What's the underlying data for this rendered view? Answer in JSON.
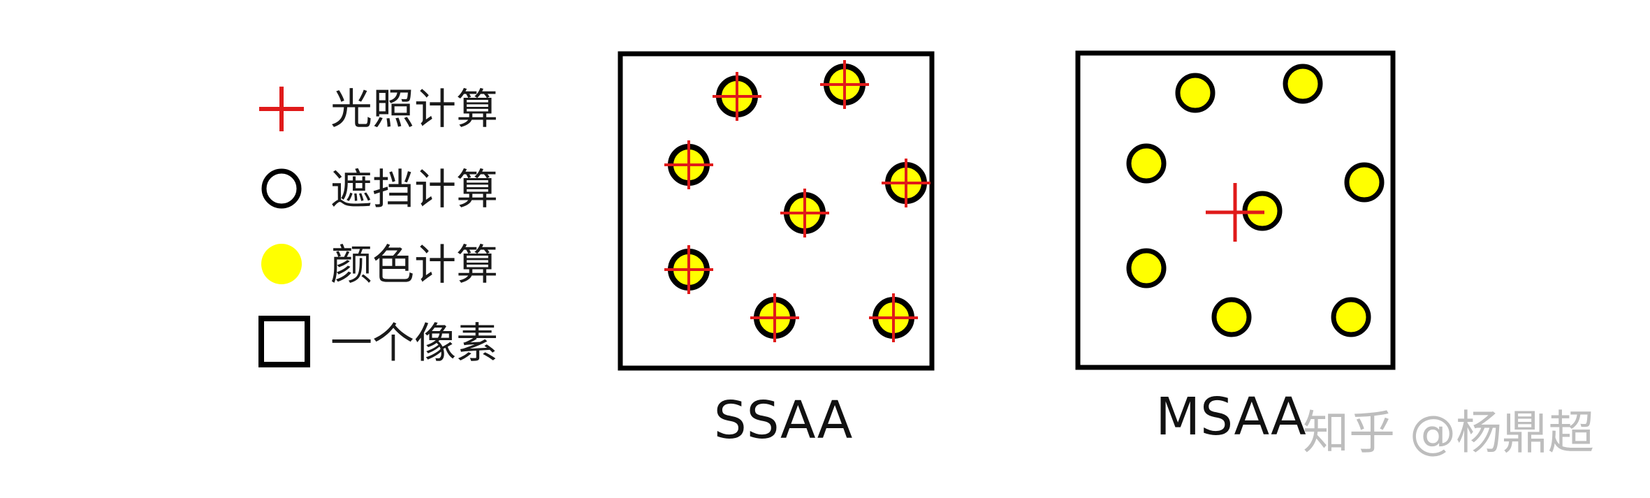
{
  "colors": {
    "lighting": "#e01a1a",
    "occlusion": "#000000",
    "color_sample": "#ffff00",
    "background": "#ffffff",
    "watermark": "#bdbdbd"
  },
  "legend": {
    "items": [
      {
        "icon": "red-cross-icon",
        "label": "光照计算"
      },
      {
        "icon": "black-ring-icon",
        "label": "遮挡计算"
      },
      {
        "icon": "yellow-dot-icon",
        "label": "颜色计算"
      },
      {
        "icon": "black-square-icon",
        "label": "一个像素"
      }
    ]
  },
  "panels": [
    {
      "caption": "SSAA"
    },
    {
      "caption": "MSAA"
    }
  ],
  "watermark": "知乎 @杨鼎超"
}
